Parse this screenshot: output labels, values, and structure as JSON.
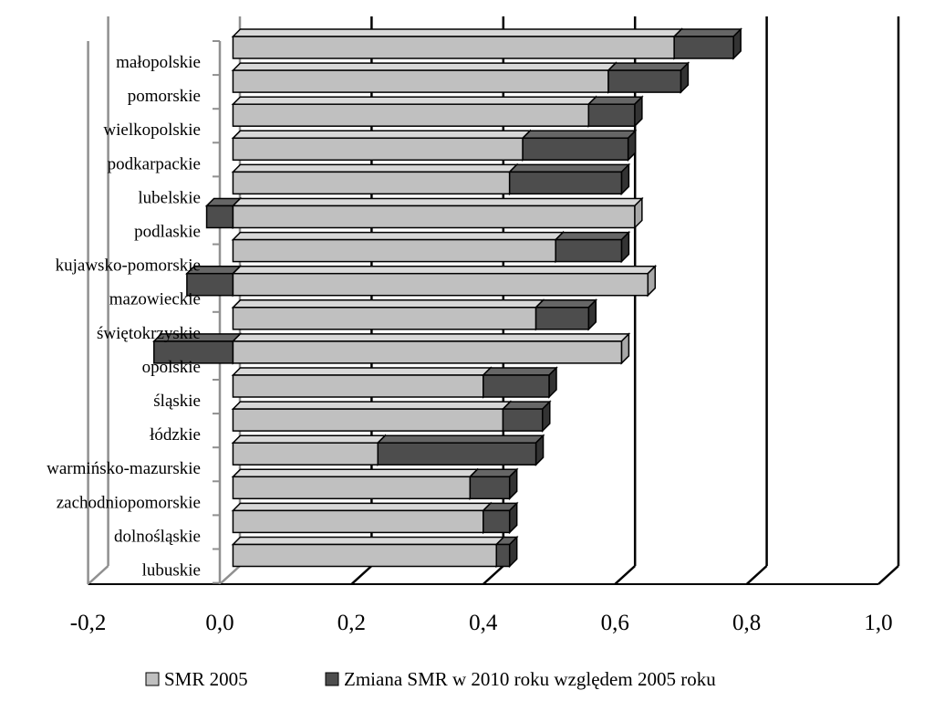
{
  "chart_data": {
    "type": "bar",
    "orientation": "horizontal",
    "stacked": true,
    "style": "3d",
    "categories": [
      "małopolskie",
      "pomorskie",
      "wielkopolskie",
      "podkarpackie",
      "lubelskie",
      "podlaskie",
      "kujawsko-pomorskie",
      "mazowieckie",
      "świętokrzyskie",
      "opolskie",
      "śląskie",
      "łódzkie",
      "warmińsko-mazurskie",
      "zachodniopomorskie",
      "dolnośląskie",
      "lubuskie"
    ],
    "series": [
      {
        "name": "SMR 2005",
        "color": "#c0c0c0",
        "values": [
          0.69,
          0.59,
          0.56,
          0.46,
          0.44,
          0.63,
          0.51,
          0.65,
          0.48,
          0.61,
          0.4,
          0.43,
          0.24,
          0.38,
          0.4,
          0.42
        ]
      },
      {
        "name": "Zmiana SMR w 2010 roku względem 2005 roku",
        "color": "#4d4d4d",
        "values": [
          0.09,
          0.11,
          0.07,
          0.16,
          0.17,
          -0.02,
          0.1,
          -0.05,
          0.08,
          -0.1,
          0.1,
          0.06,
          0.24,
          0.06,
          0.04,
          0.02
        ]
      }
    ],
    "x_ticks": [
      "-0,2",
      "0,0",
      "0,2",
      "0,4",
      "0,6",
      "0,8",
      "1,0"
    ],
    "xlim": [
      -0.2,
      1.0
    ],
    "grid": true,
    "legend_position": "bottom"
  }
}
